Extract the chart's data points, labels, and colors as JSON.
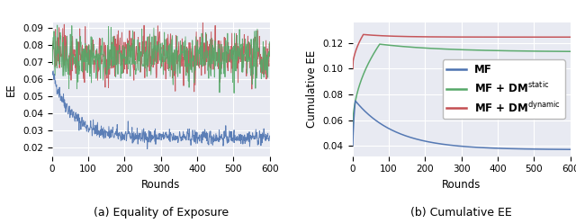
{
  "fig_width": 6.4,
  "fig_height": 2.48,
  "dpi": 100,
  "background_color": "#e8eaf2",
  "grid_color": "white",
  "left_title": "(a) Equality of Exposure",
  "right_title": "(b) Cumulative EE",
  "xlabel": "Rounds",
  "left_ylabel": "EE",
  "right_ylabel": "Cumulative EE",
  "color_blue": "#4c72b0",
  "color_green": "#55a868",
  "color_red": "#c44e52",
  "legend_labels": [
    "MF",
    "MF + DM$^{\\mathrm{static}}$",
    "MF + DM$^{\\mathrm{dynamic}}$"
  ],
  "n_rounds": 600,
  "seed": 42,
  "left_ylim": [
    0.015,
    0.093
  ],
  "left_yticks": [
    0.02,
    0.03,
    0.04,
    0.05,
    0.06,
    0.07,
    0.08,
    0.09
  ],
  "right_ylim": [
    0.032,
    0.136
  ],
  "right_yticks": [
    0.04,
    0.06,
    0.08,
    0.1,
    0.12
  ]
}
